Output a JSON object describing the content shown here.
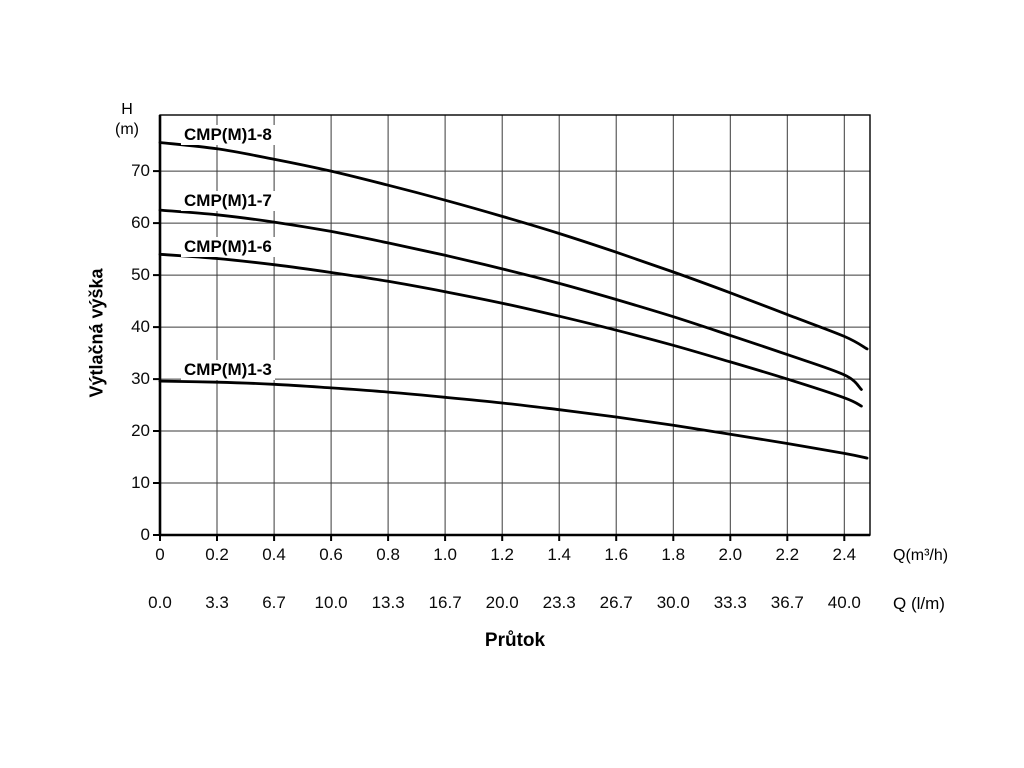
{
  "colors": {
    "background": "#ffffff",
    "line": "#000000",
    "grid": "#3a3a3a",
    "axis": "#000000",
    "text": "#000000"
  },
  "chart_data": {
    "type": "line",
    "title": "",
    "x_axis": {
      "title": "Průtok",
      "unit_label": "Q(m³/h)",
      "ticks": [
        "0",
        "0.2",
        "0.4",
        "0.6",
        "0.8",
        "1.0",
        "1.2",
        "1.4",
        "1.6",
        "1.8",
        "2.0",
        "2.2",
        "2.4"
      ],
      "range": [
        0,
        2.49
      ]
    },
    "x_axis_secondary": {
      "unit_label": "Q (l/m)",
      "ticks": [
        "0.0",
        "3.3",
        "6.7",
        "10.0",
        "13.3",
        "16.7",
        "20.0",
        "23.3",
        "26.7",
        "30.0",
        "33.3",
        "36.7",
        "40.0"
      ]
    },
    "y_axis": {
      "label": "Výtlačná výška",
      "unit_line1": "H",
      "unit_line2": "(m)",
      "ticks": [
        0,
        10,
        20,
        30,
        40,
        50,
        60,
        70
      ],
      "range": [
        0,
        80.8
      ]
    },
    "grid": true,
    "legend": "inline-curve-labels",
    "series": [
      {
        "name": "CMP(M)1-8",
        "points": [
          [
            0,
            75.5
          ],
          [
            0.2,
            74.3
          ],
          [
            0.4,
            72.3
          ],
          [
            0.6,
            70.0
          ],
          [
            0.8,
            67.3
          ],
          [
            1.0,
            64.4
          ],
          [
            1.2,
            61.3
          ],
          [
            1.4,
            58.0
          ],
          [
            1.6,
            54.4
          ],
          [
            1.8,
            50.6
          ],
          [
            2.0,
            46.6
          ],
          [
            2.2,
            42.4
          ],
          [
            2.4,
            38.2
          ],
          [
            2.48,
            35.8
          ]
        ]
      },
      {
        "name": "CMP(M)1-7",
        "points": [
          [
            0,
            62.5
          ],
          [
            0.2,
            61.6
          ],
          [
            0.4,
            60.2
          ],
          [
            0.6,
            58.4
          ],
          [
            0.8,
            56.2
          ],
          [
            1.0,
            53.8
          ],
          [
            1.2,
            51.2
          ],
          [
            1.4,
            48.4
          ],
          [
            1.6,
            45.3
          ],
          [
            1.8,
            42.0
          ],
          [
            2.0,
            38.4
          ],
          [
            2.2,
            34.7
          ],
          [
            2.4,
            30.8
          ],
          [
            2.46,
            28.0
          ]
        ]
      },
      {
        "name": "CMP(M)1-6",
        "points": [
          [
            0,
            54.0
          ],
          [
            0.2,
            53.2
          ],
          [
            0.4,
            52.0
          ],
          [
            0.6,
            50.5
          ],
          [
            0.8,
            48.8
          ],
          [
            1.0,
            46.8
          ],
          [
            1.2,
            44.6
          ],
          [
            1.4,
            42.1
          ],
          [
            1.6,
            39.4
          ],
          [
            1.8,
            36.5
          ],
          [
            2.0,
            33.3
          ],
          [
            2.2,
            30.0
          ],
          [
            2.4,
            26.4
          ],
          [
            2.46,
            24.8
          ]
        ]
      },
      {
        "name": "CMP(M)1-3",
        "points": [
          [
            0,
            29.6
          ],
          [
            0.2,
            29.4
          ],
          [
            0.4,
            29.0
          ],
          [
            0.6,
            28.3
          ],
          [
            0.8,
            27.5
          ],
          [
            1.0,
            26.5
          ],
          [
            1.2,
            25.4
          ],
          [
            1.4,
            24.1
          ],
          [
            1.6,
            22.7
          ],
          [
            1.8,
            21.1
          ],
          [
            2.0,
            19.4
          ],
          [
            2.2,
            17.6
          ],
          [
            2.4,
            15.7
          ],
          [
            2.48,
            14.8
          ]
        ]
      }
    ]
  }
}
